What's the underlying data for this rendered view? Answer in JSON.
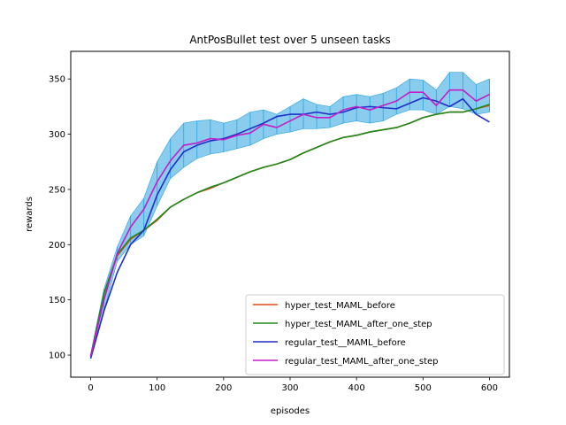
{
  "chart_data": {
    "type": "line",
    "title": "AntPosBullet test over 5 unseen tasks",
    "xlabel": "episodes",
    "ylabel": "rewards",
    "xlim": [
      -30,
      630
    ],
    "ylim": [
      80,
      375
    ],
    "xticks": [
      0,
      100,
      200,
      300,
      400,
      500,
      600
    ],
    "yticks": [
      100,
      150,
      200,
      250,
      300,
      350
    ],
    "grid": false,
    "legend_position": "lower-right",
    "x": [
      0,
      20,
      40,
      60,
      80,
      100,
      120,
      140,
      160,
      180,
      200,
      220,
      240,
      260,
      280,
      300,
      320,
      340,
      360,
      380,
      400,
      420,
      440,
      460,
      480,
      500,
      520,
      540,
      560,
      580,
      600
    ],
    "series": [
      {
        "name": "hyper_test_MAML_before",
        "color": "#e24a1c",
        "values": [
          99,
          155,
          190,
          205,
          213,
          222,
          234,
          241,
          247,
          251,
          256,
          261,
          266,
          270,
          273,
          277,
          283,
          288,
          293,
          297,
          299,
          302,
          304,
          306,
          310,
          315,
          318,
          320,
          320,
          323,
          326
        ]
      },
      {
        "name": "hyper_test_MAML_after_one_step",
        "color": "#1e8a1e",
        "values": [
          99,
          156,
          191,
          206,
          213,
          223,
          234,
          241,
          247,
          252,
          256,
          261,
          266,
          270,
          273,
          277,
          283,
          288,
          293,
          297,
          299,
          302,
          304,
          306,
          310,
          315,
          318,
          320,
          320,
          323,
          327
        ]
      },
      {
        "name": "regular_test__MAML_before",
        "color": "#1f2ec9",
        "values": [
          97,
          140,
          175,
          200,
          213,
          245,
          268,
          284,
          290,
          294,
          296,
          300,
          305,
          310,
          316,
          318,
          318,
          320,
          318,
          320,
          324,
          325,
          324,
          323,
          328,
          333,
          330,
          325,
          332,
          318,
          311
        ]
      },
      {
        "name": "regular_test_MAML_after_one_step",
        "color": "#c21ec7",
        "values": [
          99,
          150,
          192,
          216,
          232,
          257,
          276,
          290,
          292,
          296,
          295,
          299,
          301,
          309,
          306,
          312,
          318,
          315,
          315,
          322,
          325,
          322,
          326,
          330,
          338,
          338,
          326,
          340,
          340,
          330,
          336
        ]
      }
    ],
    "band": {
      "color": "#2aa3e0",
      "lower": [
        97,
        140,
        185,
        200,
        208,
        235,
        260,
        270,
        278,
        282,
        284,
        287,
        290,
        296,
        300,
        302,
        305,
        305,
        306,
        310,
        312,
        310,
        312,
        318,
        322,
        322,
        318,
        325,
        323,
        318,
        320
      ],
      "upper": [
        101,
        160,
        198,
        226,
        242,
        275,
        296,
        310,
        312,
        313,
        310,
        313,
        320,
        322,
        318,
        325,
        332,
        327,
        325,
        334,
        336,
        334,
        337,
        342,
        350,
        349,
        340,
        356,
        356,
        345,
        350
      ]
    }
  }
}
